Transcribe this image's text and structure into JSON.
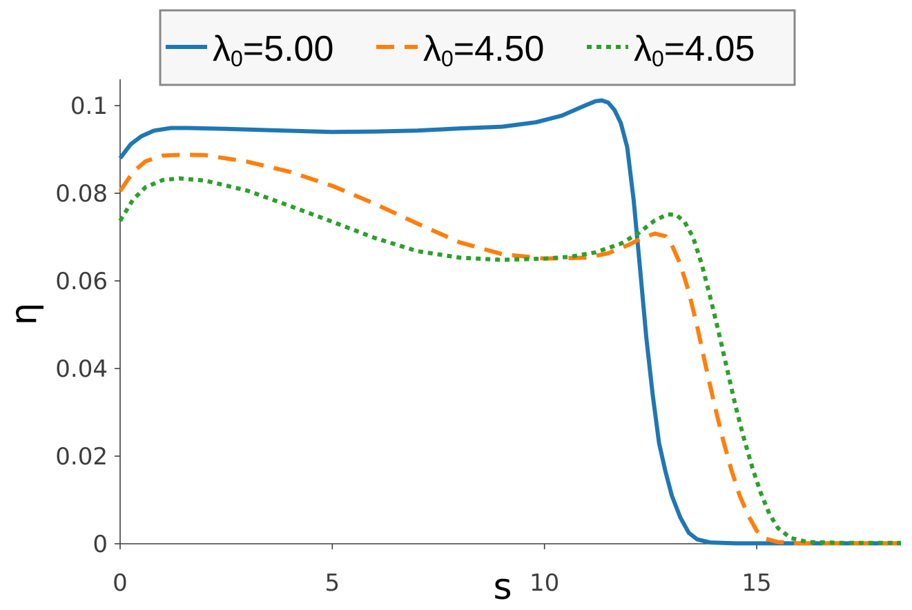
{
  "chart_data": {
    "type": "line",
    "xlabel": "s",
    "ylabel": "η",
    "xlim": [
      0,
      18.4
    ],
    "ylim": [
      0,
      0.106
    ],
    "xticks": [
      {
        "value": 0,
        "label": "0"
      },
      {
        "value": 5,
        "label": "5"
      },
      {
        "value": 10,
        "label": "10"
      },
      {
        "value": 15,
        "label": "15"
      }
    ],
    "yticks": [
      {
        "value": 0,
        "label": "0"
      },
      {
        "value": 0.02,
        "label": "0.02"
      },
      {
        "value": 0.04,
        "label": "0.04"
      },
      {
        "value": 0.06,
        "label": "0.06"
      },
      {
        "value": 0.08,
        "label": "0.08"
      },
      {
        "value": 0.1,
        "label": "0.1"
      }
    ],
    "grid": false,
    "legend_placement": "top-center",
    "series": [
      {
        "name": "λ0=5.00",
        "name_base": "λ",
        "name_sub": "0",
        "name_rest": "=5.00",
        "color": "#1f77b4",
        "style": "solid",
        "points": [
          [
            0,
            0.088
          ],
          [
            0.25,
            0.0912
          ],
          [
            0.5,
            0.093
          ],
          [
            0.8,
            0.0943
          ],
          [
            1.2,
            0.0949
          ],
          [
            1.6,
            0.0949
          ],
          [
            2.5,
            0.0947
          ],
          [
            3.5,
            0.0944
          ],
          [
            5,
            0.094
          ],
          [
            6,
            0.0941
          ],
          [
            7,
            0.0943
          ],
          [
            8,
            0.0948
          ],
          [
            9,
            0.0952
          ],
          [
            9.8,
            0.0962
          ],
          [
            10.4,
            0.0977
          ],
          [
            10.9,
            0.0998
          ],
          [
            11.2,
            0.101
          ],
          [
            11.35,
            0.1012
          ],
          [
            11.5,
            0.1007
          ],
          [
            11.65,
            0.099
          ],
          [
            11.8,
            0.096
          ],
          [
            11.95,
            0.0905
          ],
          [
            12.1,
            0.0785
          ],
          [
            12.25,
            0.063
          ],
          [
            12.4,
            0.047
          ],
          [
            12.55,
            0.034
          ],
          [
            12.7,
            0.023
          ],
          [
            12.85,
            0.0165
          ],
          [
            13.0,
            0.011
          ],
          [
            13.2,
            0.006
          ],
          [
            13.4,
            0.0025
          ],
          [
            13.6,
            0.001
          ],
          [
            13.9,
            0.0003
          ],
          [
            14.5,
            0.0001
          ],
          [
            16,
            0.0001
          ],
          [
            18.4,
            0.0001
          ]
        ]
      },
      {
        "name": "λ0=4.50",
        "name_base": "λ",
        "name_sub": "0",
        "name_rest": "=4.50",
        "color": "#ff7f0e",
        "style": "dashed",
        "points": [
          [
            0,
            0.0805
          ],
          [
            0.3,
            0.0848
          ],
          [
            0.6,
            0.0873
          ],
          [
            1,
            0.0886
          ],
          [
            1.5,
            0.0888
          ],
          [
            2,
            0.0887
          ],
          [
            3,
            0.0872
          ],
          [
            4,
            0.0849
          ],
          [
            5,
            0.0817
          ],
          [
            6,
            0.0776
          ],
          [
            7,
            0.0731
          ],
          [
            8,
            0.0688
          ],
          [
            9,
            0.0661
          ],
          [
            10,
            0.0651
          ],
          [
            11,
            0.0653
          ],
          [
            11.5,
            0.0663
          ],
          [
            12,
            0.0683
          ],
          [
            12.3,
            0.0698
          ],
          [
            12.6,
            0.0708
          ],
          [
            12.85,
            0.0702
          ],
          [
            13.0,
            0.0682
          ],
          [
            13.2,
            0.0638
          ],
          [
            13.4,
            0.0575
          ],
          [
            13.6,
            0.0495
          ],
          [
            13.8,
            0.0405
          ],
          [
            14.0,
            0.032
          ],
          [
            14.2,
            0.024
          ],
          [
            14.4,
            0.017
          ],
          [
            14.6,
            0.011
          ],
          [
            14.8,
            0.0065
          ],
          [
            15.0,
            0.003
          ],
          [
            15.2,
            0.0012
          ],
          [
            15.5,
            0.0004
          ],
          [
            16,
            0.0001
          ],
          [
            17,
            0.0001
          ],
          [
            18.4,
            0.0001
          ]
        ]
      },
      {
        "name": "λ0=4.05",
        "name_base": "λ",
        "name_sub": "0",
        "name_rest": "=4.05",
        "color": "#2ca02c",
        "style": "dotted",
        "points": [
          [
            0,
            0.0737
          ],
          [
            0.3,
            0.0785
          ],
          [
            0.6,
            0.0814
          ],
          [
            1,
            0.083
          ],
          [
            1.4,
            0.0834
          ],
          [
            2,
            0.0829
          ],
          [
            3,
            0.0806
          ],
          [
            4,
            0.0771
          ],
          [
            5,
            0.0735
          ],
          [
            6,
            0.0698
          ],
          [
            7,
            0.0668
          ],
          [
            8,
            0.0653
          ],
          [
            9,
            0.0648
          ],
          [
            10,
            0.0651
          ],
          [
            10.6,
            0.0655
          ],
          [
            11.2,
            0.0665
          ],
          [
            11.8,
            0.0685
          ],
          [
            12.2,
            0.0708
          ],
          [
            12.6,
            0.0738
          ],
          [
            12.9,
            0.0752
          ],
          [
            13.1,
            0.0751
          ],
          [
            13.3,
            0.0735
          ],
          [
            13.5,
            0.07
          ],
          [
            13.7,
            0.064
          ],
          [
            13.9,
            0.0565
          ],
          [
            14.1,
            0.0485
          ],
          [
            14.3,
            0.04
          ],
          [
            14.5,
            0.0315
          ],
          [
            14.7,
            0.024
          ],
          [
            14.9,
            0.0173
          ],
          [
            15.1,
            0.0115
          ],
          [
            15.3,
            0.0068
          ],
          [
            15.5,
            0.0036
          ],
          [
            15.8,
            0.0013
          ],
          [
            16.2,
            0.0004
          ],
          [
            17,
            0.0002
          ],
          [
            18.4,
            0.0002
          ]
        ]
      }
    ]
  }
}
